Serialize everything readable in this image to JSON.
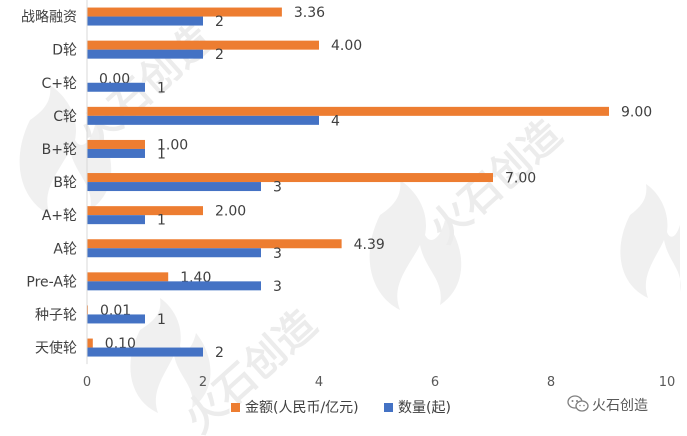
{
  "chart_data": {
    "type": "bar",
    "orientation": "horizontal",
    "categories": [
      "战略融资",
      "D轮",
      "C+轮",
      "C轮",
      "B+轮",
      "B轮",
      "A+轮",
      "A轮",
      "Pre-A轮",
      "种子轮",
      "天使轮"
    ],
    "series": [
      {
        "name": "金额(人民币/亿元)",
        "color": "#ed7d31",
        "values": [
          3.36,
          4.0,
          0.0,
          9.0,
          1.0,
          7.0,
          2.0,
          4.39,
          1.4,
          0.01,
          0.1
        ],
        "labels": [
          "3.36",
          "4.00",
          "0.00",
          "9.00",
          "1.00",
          "7.00",
          "2.00",
          "4.39",
          "1.40",
          "0.01",
          "0.10"
        ]
      },
      {
        "name": "数量(起)",
        "color": "#4472c4",
        "values": [
          2,
          2,
          1,
          4,
          1,
          3,
          1,
          3,
          3,
          1,
          2
        ],
        "labels": [
          "2",
          "2",
          "1",
          "4",
          "1",
          "3",
          "1",
          "3",
          "3",
          "1",
          "2"
        ]
      }
    ],
    "xlim": [
      0,
      10
    ],
    "xticks": [
      "0",
      "2",
      "4",
      "6",
      "8",
      "10"
    ],
    "legend_position": "bottom",
    "grid": false
  },
  "watermark": {
    "text": "火石创造",
    "icon": "flame-logo-icon"
  },
  "brand": {
    "icon": "wechat-icon",
    "text": "火石创造"
  }
}
